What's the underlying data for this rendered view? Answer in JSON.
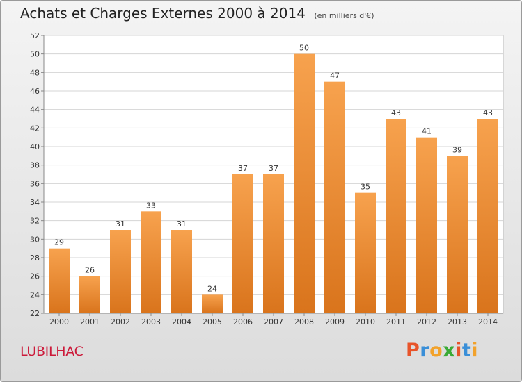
{
  "header": {
    "title": "Achats et Charges Externes 2000 à 2014",
    "unit": "(en milliers d'€)"
  },
  "footer": {
    "place": "LUBILHAC",
    "logo_text": "Proxiti",
    "logo_colors": [
      "#e8542a",
      "#3a8fd8",
      "#f2a22b",
      "#3aaa35",
      "#e8542a",
      "#3a8fd8",
      "#f2a22b"
    ]
  },
  "chart_data": {
    "type": "bar",
    "title": "Achats et Charges Externes 2000 à 2014",
    "subtitle": "(en milliers d'€)",
    "categories": [
      "2000",
      "2001",
      "2002",
      "2003",
      "2004",
      "2005",
      "2006",
      "2007",
      "2008",
      "2009",
      "2010",
      "2011",
      "2012",
      "2013",
      "2014"
    ],
    "values": [
      29,
      26,
      31,
      33,
      31,
      24,
      37,
      37,
      50,
      47,
      35,
      43,
      41,
      39,
      43
    ],
    "ylim": [
      22,
      52
    ],
    "yticks": [
      22,
      24,
      26,
      28,
      30,
      32,
      34,
      36,
      38,
      40,
      42,
      44,
      46,
      48,
      50,
      52
    ],
    "grid": true,
    "bar_color_top": "#f7a24e",
    "bar_color_bottom": "#d9741c",
    "xlabel": "",
    "ylabel": ""
  }
}
